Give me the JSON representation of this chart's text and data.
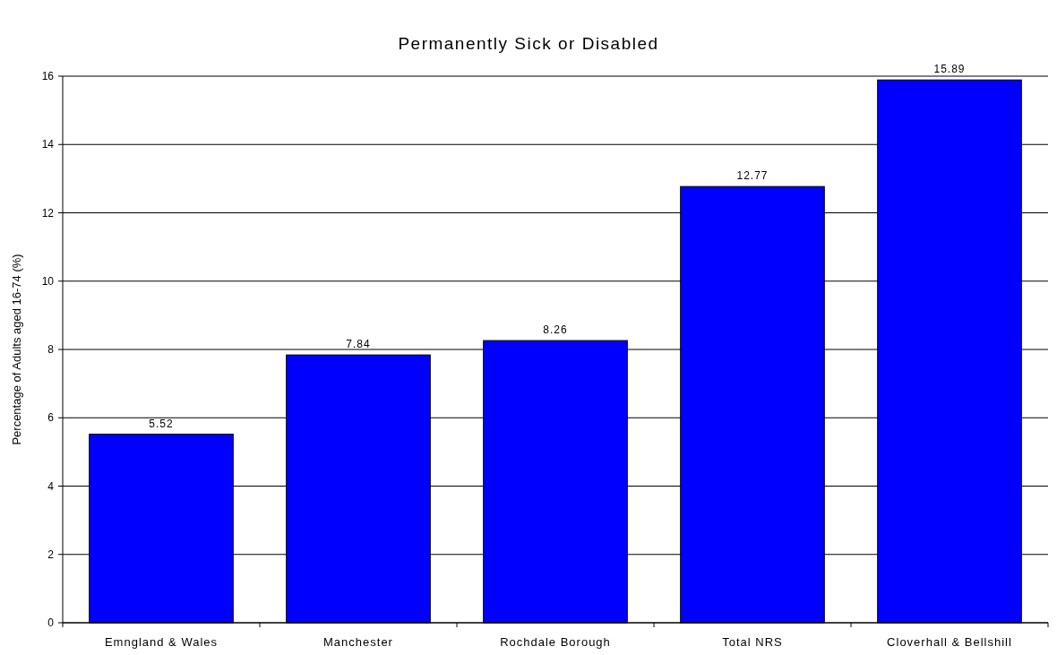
{
  "chart_data": {
    "type": "bar",
    "title": "Permanently Sick or Disabled",
    "ylabel": "Percentage of Adults aged 16-74 (%)",
    "categories": [
      "Emngland & Wales",
      "Manchester",
      "Rochdale Borough",
      "Total NRS",
      "Cloverhall & Bellshill"
    ],
    "values": [
      5.52,
      7.84,
      8.26,
      12.77,
      15.89
    ],
    "color": "#0000ff",
    "ylim": [
      0,
      16
    ],
    "yticks": [
      0,
      2,
      4,
      6,
      8,
      10,
      12,
      14,
      16
    ],
    "grid": "y",
    "data_labels": true
  }
}
